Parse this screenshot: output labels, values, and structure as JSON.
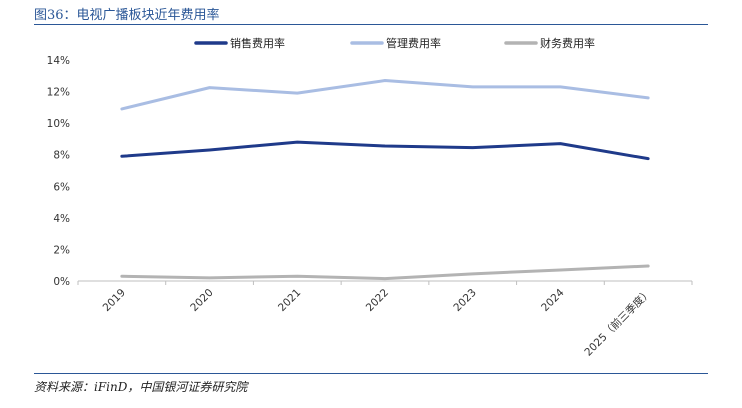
{
  "header": {
    "title": "图36：电视广播板块近年费用率"
  },
  "footer": {
    "source": "资料来源：iFinD，中国银河证券研究院"
  },
  "chart_data": {
    "type": "line",
    "title": "",
    "xlabel": "",
    "ylabel": "",
    "categories": [
      "2019",
      "2020",
      "2021",
      "2022",
      "2023",
      "2024",
      "2025（前三季度）"
    ],
    "ylim": [
      0,
      14
    ],
    "yticks": [
      "0%",
      "2%",
      "4%",
      "6%",
      "8%",
      "10%",
      "12%",
      "14%"
    ],
    "grid": false,
    "legend_position": "top",
    "series": [
      {
        "name": "销售费用率",
        "color": "#1f3a8a",
        "values": [
          7.9,
          8.3,
          8.8,
          8.55,
          8.45,
          8.7,
          7.75
        ]
      },
      {
        "name": "管理费用率",
        "color": "#a9bde3",
        "values": [
          10.9,
          12.25,
          11.9,
          12.7,
          12.3,
          12.3,
          11.6
        ]
      },
      {
        "name": "财务费用率",
        "color": "#b3b3b3",
        "values": [
          0.3,
          0.2,
          0.3,
          0.15,
          0.45,
          0.7,
          0.95
        ]
      }
    ]
  }
}
